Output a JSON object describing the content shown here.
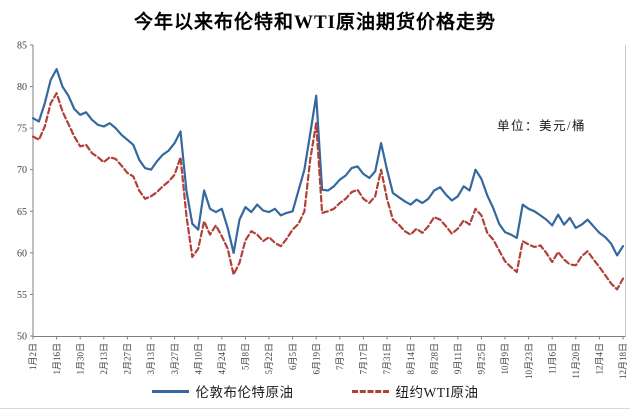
{
  "chart": {
    "title": "今年以来布伦特和WTI原油期货价格走势",
    "unit_label": "单位：美元/桶"
  },
  "colors": {
    "brent_line": "#35689f",
    "wti_line": "#b2403a",
    "axis": "#7f7f7f",
    "plot_right_border": "#c9c9c9",
    "tick_text": "#3f3f3f"
  },
  "chart_data": {
    "type": "line",
    "title": "今年以来布伦特和WTI原油期货价格走势",
    "unit": "美元/桶",
    "xlabel": "",
    "ylabel": "",
    "ylim": [
      50,
      85
    ],
    "yticks": [
      85,
      80,
      75,
      70,
      65,
      60,
      55,
      50
    ],
    "grid": false,
    "legend_position": "bottom",
    "categories": [
      "1月2日",
      "1月16日",
      "1月30日",
      "2月13日",
      "2月27日",
      "3月13日",
      "3月27日",
      "4月10日",
      "4月24日",
      "5月8日",
      "5月22日",
      "6月5日",
      "6月19日",
      "7月3日",
      "7月17日",
      "7月31日",
      "8月14日",
      "8月28日",
      "9月11日",
      "9月25日",
      "10月9日",
      "10月23日",
      "11月6日",
      "11月20日",
      "12月4日",
      "12月18日"
    ],
    "points_per_category_interval": 4,
    "series": [
      {
        "name": "伦敦布伦特原油",
        "color": "#35689f",
        "style": "solid",
        "values": [
          76.2,
          75.8,
          78.0,
          80.8,
          82.1,
          80.0,
          78.9,
          77.3,
          76.6,
          76.9,
          76.0,
          75.4,
          75.2,
          75.6,
          75.0,
          74.2,
          73.6,
          73.0,
          71.2,
          70.2,
          70.0,
          71.0,
          71.8,
          72.3,
          73.2,
          74.6,
          67.5,
          63.5,
          62.8,
          67.5,
          65.3,
          64.9,
          65.3,
          63.0,
          60.0,
          64.0,
          65.5,
          64.9,
          65.8,
          65.1,
          64.9,
          65.3,
          64.5,
          64.8,
          65.0,
          67.5,
          70.0,
          74.4,
          78.9,
          67.6,
          67.5,
          68.0,
          68.8,
          69.3,
          70.2,
          70.4,
          69.5,
          69.0,
          69.8,
          73.2,
          70.0,
          67.2,
          66.7,
          66.2,
          65.8,
          66.4,
          66.0,
          66.5,
          67.5,
          67.9,
          67.0,
          66.3,
          66.8,
          68.0,
          67.5,
          70.0,
          68.9,
          66.9,
          65.4,
          63.5,
          62.5,
          62.2,
          61.8,
          65.8,
          65.3,
          65.0,
          64.5,
          64.0,
          63.3,
          64.6,
          63.4,
          64.2,
          63.0,
          63.4,
          64.0,
          63.2,
          62.4,
          61.9,
          61.1,
          59.7,
          60.8
        ]
      },
      {
        "name": "纽约WTI原油",
        "color": "#b2403a",
        "style": "dashed",
        "values": [
          74.0,
          73.6,
          75.2,
          78.0,
          79.2,
          77.0,
          75.5,
          74.0,
          72.8,
          73.0,
          72.0,
          71.5,
          70.9,
          71.5,
          71.3,
          70.5,
          69.6,
          69.2,
          67.5,
          66.5,
          66.8,
          67.3,
          68.0,
          68.6,
          69.4,
          71.5,
          64.5,
          59.5,
          60.5,
          63.8,
          62.2,
          63.3,
          62.0,
          60.5,
          57.4,
          58.8,
          61.5,
          62.6,
          62.2,
          61.4,
          61.9,
          61.2,
          60.8,
          61.7,
          62.8,
          63.5,
          65.0,
          71.3,
          75.6,
          64.8,
          65.0,
          65.3,
          66.0,
          66.5,
          67.3,
          67.6,
          66.5,
          66.0,
          66.8,
          70.0,
          66.5,
          64.0,
          63.4,
          62.6,
          62.2,
          62.9,
          62.4,
          63.2,
          64.3,
          64.0,
          63.2,
          62.3,
          62.9,
          63.9,
          63.4,
          65.3,
          64.5,
          62.4,
          61.6,
          60.3,
          59.0,
          58.3,
          57.7,
          61.4,
          61.0,
          60.7,
          60.9,
          60.0,
          58.9,
          60.1,
          59.2,
          58.6,
          58.5,
          59.6,
          60.2,
          59.2,
          58.3,
          57.3,
          56.3,
          55.6,
          56.9
        ]
      }
    ]
  }
}
